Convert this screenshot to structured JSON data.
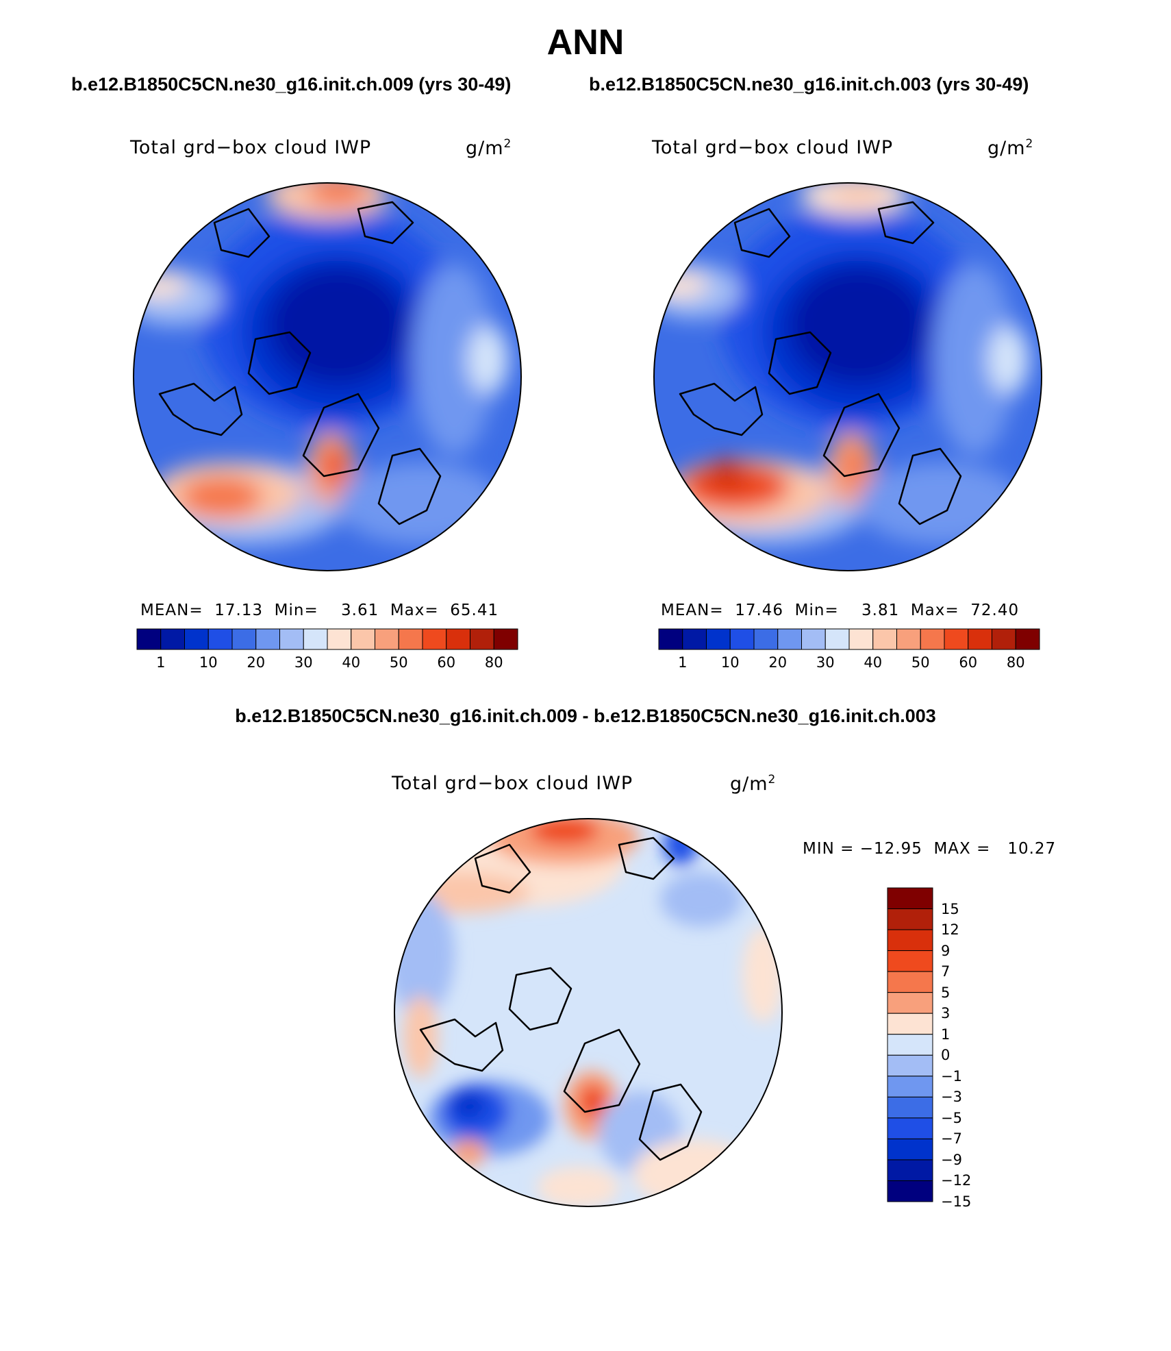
{
  "figure": {
    "title": "ANN",
    "case1_title": "b.e12.B1850C5CN.ne30_g16.init.ch.009 (yrs 30-49)",
    "case2_title": "b.e12.B1850C5CN.ne30_g16.init.ch.003 (yrs 30-49)",
    "diff_title": "b.e12.B1850C5CN.ne30_g16.init.ch.009 - b.e12.B1850C5CN.ne30_g16.init.ch.003"
  },
  "panels": [
    {
      "variable": "Total grd−box cloud IWP",
      "units": "g/m",
      "units_sup": "2",
      "stats": "MEAN=  17.13  Min=    3.61  Max=  65.41"
    },
    {
      "variable": "Total grd−box cloud IWP",
      "units": "g/m",
      "units_sup": "2",
      "stats": "MEAN=  17.46  Min=    3.81  Max=  72.40"
    },
    {
      "variable": "Total grd−box cloud IWP",
      "units": "g/m",
      "units_sup": "2",
      "stats": "MIN = −12.95  MAX =   10.27"
    }
  ],
  "abs_colorbar": {
    "colors": [
      "#00007f",
      "#0019a5",
      "#0033cc",
      "#1f4fe6",
      "#3c6de6",
      "#6f97f0",
      "#a3bdf5",
      "#d5e5fa",
      "#fde3d3",
      "#fbc6aa",
      "#f8a07c",
      "#f5774c",
      "#ef4a1e",
      "#d9300c",
      "#b1200a",
      "#7f0000"
    ],
    "labels": [
      "1",
      "10",
      "20",
      "30",
      "40",
      "50",
      "60",
      "80"
    ]
  },
  "diff_colorbar": {
    "colors": [
      "#7f0000",
      "#b1200a",
      "#d9300c",
      "#ef4a1e",
      "#f5774c",
      "#f8a07c",
      "#fde3d3",
      "#d5e5fa",
      "#a3bdf5",
      "#6f97f0",
      "#3c6de6",
      "#1f4fe6",
      "#0033cc",
      "#0019a5",
      "#00007f"
    ],
    "labels": [
      "15",
      "12",
      "9",
      "7",
      "5",
      "3",
      "1",
      "0",
      "−1",
      "−3",
      "−5",
      "−7",
      "−9",
      "−12",
      "−15"
    ]
  }
}
